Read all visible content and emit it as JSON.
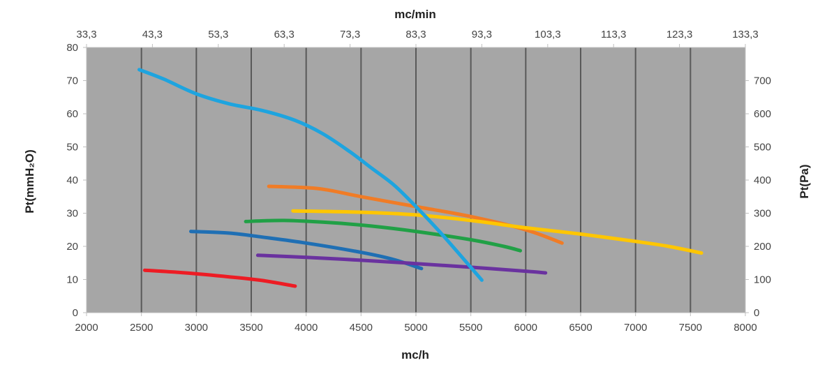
{
  "chart_data": {
    "type": "line",
    "title": "",
    "xlabel": "mc/h",
    "x2label": "mc/min",
    "ylabel": "Pt(mmH₂O)",
    "y2label": "Pt(Pa)",
    "xlim": [
      2000,
      8000
    ],
    "ylim": [
      0,
      80
    ],
    "y2lim": [
      0,
      800
    ],
    "x_ticks": [
      "2000",
      "2500",
      "3000",
      "3500",
      "4000",
      "4500",
      "5000",
      "5500",
      "6000",
      "6500",
      "7000",
      "7500",
      "8000"
    ],
    "x2_ticks": [
      "33,3",
      "43,3",
      "53,3",
      "63,3",
      "73,3",
      "83,3",
      "93,3",
      "103,3",
      "113,3",
      "123,3",
      "133,3"
    ],
    "y_ticks": [
      "0",
      "10",
      "20",
      "30",
      "40",
      "50",
      "60",
      "70",
      "80"
    ],
    "y2_ticks": [
      "0",
      "100",
      "200",
      "300",
      "400",
      "500",
      "600",
      "700"
    ],
    "plot_background": "#a6a6a6",
    "gridline_color": "#595959",
    "legend": "none",
    "series": [
      {
        "color": "#ed1c24",
        "points": [
          [
            2530,
            12.8
          ],
          [
            2900,
            12.0
          ],
          [
            3300,
            10.8
          ],
          [
            3600,
            9.7
          ],
          [
            3900,
            8.0
          ]
        ]
      },
      {
        "color": "#1f6fb4",
        "points": [
          [
            2950,
            24.5
          ],
          [
            3300,
            24.0
          ],
          [
            3600,
            22.8
          ],
          [
            4000,
            21.0
          ],
          [
            4500,
            18.2
          ],
          [
            4800,
            16.0
          ],
          [
            5050,
            13.3
          ]
        ]
      },
      {
        "color": "#6a329f",
        "points": [
          [
            3560,
            17.3
          ],
          [
            4000,
            16.7
          ],
          [
            4500,
            15.8
          ],
          [
            5000,
            14.8
          ],
          [
            5500,
            13.7
          ],
          [
            6000,
            12.5
          ],
          [
            6180,
            12.0
          ]
        ]
      },
      {
        "color": "#21a046",
        "points": [
          [
            3450,
            27.5
          ],
          [
            3800,
            27.8
          ],
          [
            4200,
            27.2
          ],
          [
            4600,
            26.1
          ],
          [
            5000,
            24.5
          ],
          [
            5500,
            22.0
          ],
          [
            5800,
            20.0
          ],
          [
            5950,
            18.7
          ]
        ]
      },
      {
        "color": "#f07c26",
        "points": [
          [
            3660,
            38.1
          ],
          [
            4000,
            37.7
          ],
          [
            4200,
            37.0
          ],
          [
            4500,
            35.0
          ],
          [
            5000,
            32.0
          ],
          [
            5500,
            29.0
          ],
          [
            6000,
            25.0
          ],
          [
            6330,
            21.0
          ]
        ]
      },
      {
        "color": "#ffc600",
        "points": [
          [
            3880,
            30.7
          ],
          [
            4500,
            30.3
          ],
          [
            5000,
            29.5
          ],
          [
            5500,
            27.8
          ],
          [
            6000,
            25.6
          ],
          [
            6500,
            23.7
          ],
          [
            7000,
            21.5
          ],
          [
            7300,
            20.0
          ],
          [
            7600,
            18.0
          ]
        ]
      },
      {
        "color": "#1ea4df",
        "points": [
          [
            2480,
            73.3
          ],
          [
            2700,
            70.5
          ],
          [
            3000,
            66.0
          ],
          [
            3300,
            63.0
          ],
          [
            3600,
            61.0
          ],
          [
            3900,
            58.0
          ],
          [
            4150,
            54.0
          ],
          [
            4400,
            48.5
          ],
          [
            4600,
            43.5
          ],
          [
            4800,
            38.5
          ],
          [
            5000,
            32.0
          ],
          [
            5200,
            25.0
          ],
          [
            5400,
            17.5
          ],
          [
            5600,
            9.8
          ]
        ]
      }
    ]
  }
}
